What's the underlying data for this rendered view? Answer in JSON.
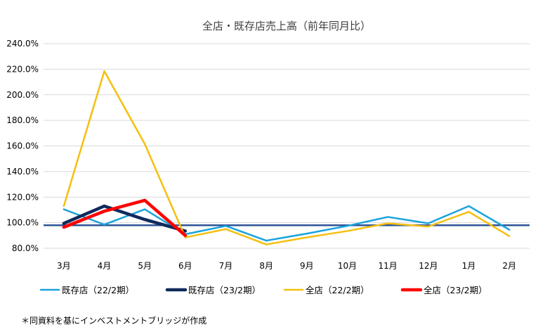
{
  "chart_data": {
    "type": "line",
    "title": "全店・既存店売上高（前年同月比）",
    "xlabel": "",
    "ylabel": "",
    "categories": [
      "3月",
      "4月",
      "5月",
      "6月",
      "7月",
      "8月",
      "9月",
      "10月",
      "11月",
      "12月",
      "1月",
      "2月"
    ],
    "y_ticks": [
      "80.0%",
      "100.0%",
      "120.0%",
      "140.0%",
      "160.0%",
      "180.0%",
      "200.0%",
      "220.0%",
      "240.0%"
    ],
    "ylim": [
      80,
      240
    ],
    "grid": true,
    "legend_position": "bottom",
    "reference_line": 98,
    "series": [
      {
        "name": "既存店（22/2期）",
        "color": "#1aa3dc",
        "width": 2.5,
        "values": [
          110.5,
          98.5,
          110.5,
          91,
          97.5,
          86,
          91.5,
          97.5,
          104.5,
          99.5,
          113,
          94.5
        ]
      },
      {
        "name": "既存店（23/2期）",
        "color": "#0f2a5c",
        "width": 4.5,
        "values": [
          99.5,
          113,
          102.5,
          93.5,
          null,
          null,
          null,
          null,
          null,
          null,
          null,
          null
        ]
      },
      {
        "name": "全店（22/2期）",
        "color": "#f5bf0f",
        "width": 2.5,
        "values": [
          113,
          218.5,
          161.5,
          88.5,
          95,
          83,
          88.5,
          93.5,
          99.5,
          97,
          108.5,
          89.5
        ]
      },
      {
        "name": "全店（23/2期）",
        "color": "#ff0000",
        "width": 4.5,
        "values": [
          96.5,
          109,
          117.5,
          90,
          null,
          null,
          null,
          null,
          null,
          null,
          null,
          null
        ]
      }
    ]
  },
  "footnote": "＊同資料を基にインベストメントブリッジが作成"
}
